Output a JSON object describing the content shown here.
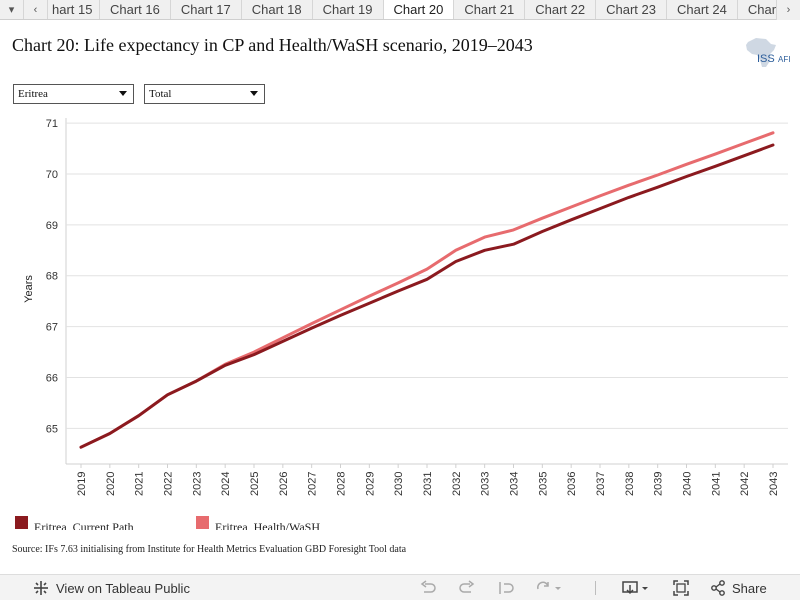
{
  "tabs": {
    "items": [
      "hart 15",
      "Chart 16",
      "Chart 17",
      "Chart 18",
      "Chart 19",
      "Chart 20",
      "Chart 21",
      "Chart 22",
      "Chart 23",
      "Chart 24",
      "Chart"
    ],
    "active_index": 5,
    "prev_icon": "chevron-left-icon",
    "next_icon": "chevron-right-icon",
    "menu_icon": "caret-down-icon"
  },
  "header": {
    "title": "Chart 20: Life expectancy in CP and Health/WaSH scenario, 2019–2043",
    "logo_text": "ISS",
    "logo_subtext": "AFI"
  },
  "filters": {
    "country": "Eritrea",
    "group": "Total"
  },
  "chart_data": {
    "type": "line",
    "title": "Chart 20: Life expectancy in CP and Health/WaSH scenario, 2019–2043",
    "xlabel": "",
    "ylabel": "Years",
    "x": [
      "2019",
      "2020",
      "2021",
      "2022",
      "2023",
      "2024",
      "2025",
      "2026",
      "2027",
      "2028",
      "2029",
      "2030",
      "2031",
      "2032",
      "2033",
      "2034",
      "2035",
      "2036",
      "2037",
      "2038",
      "2039",
      "2040",
      "2041",
      "2042",
      "2043"
    ],
    "ylim": [
      64.3,
      71.1
    ],
    "yticks": [
      65,
      66,
      67,
      68,
      69,
      70,
      71
    ],
    "grid": true,
    "legend_position": "bottom-left",
    "series": [
      {
        "name": "Eritrea, Current Path",
        "color": "#8b1a1f",
        "values": [
          64.63,
          64.9,
          65.25,
          65.66,
          65.93,
          66.24,
          66.45,
          66.71,
          66.97,
          67.22,
          67.46,
          67.7,
          67.93,
          68.28,
          68.5,
          68.62,
          68.87,
          69.1,
          69.32,
          69.54,
          69.74,
          69.95,
          70.15,
          70.36,
          70.57
        ]
      },
      {
        "name": "Eritrea, Health/WaSH",
        "color": "#e76b6e",
        "values": [
          64.63,
          64.9,
          65.25,
          65.66,
          65.93,
          66.26,
          66.5,
          66.78,
          67.06,
          67.33,
          67.6,
          67.86,
          68.13,
          68.5,
          68.76,
          68.9,
          69.13,
          69.35,
          69.57,
          69.78,
          69.98,
          70.19,
          70.39,
          70.6,
          70.81
        ]
      }
    ]
  },
  "source": "Source: IFs 7.63 initialising from Institute for Health Metrics Evaluation GBD Foresight Tool data",
  "toolbar": {
    "view_label": "View on Tableau Public",
    "share_label": "Share"
  }
}
